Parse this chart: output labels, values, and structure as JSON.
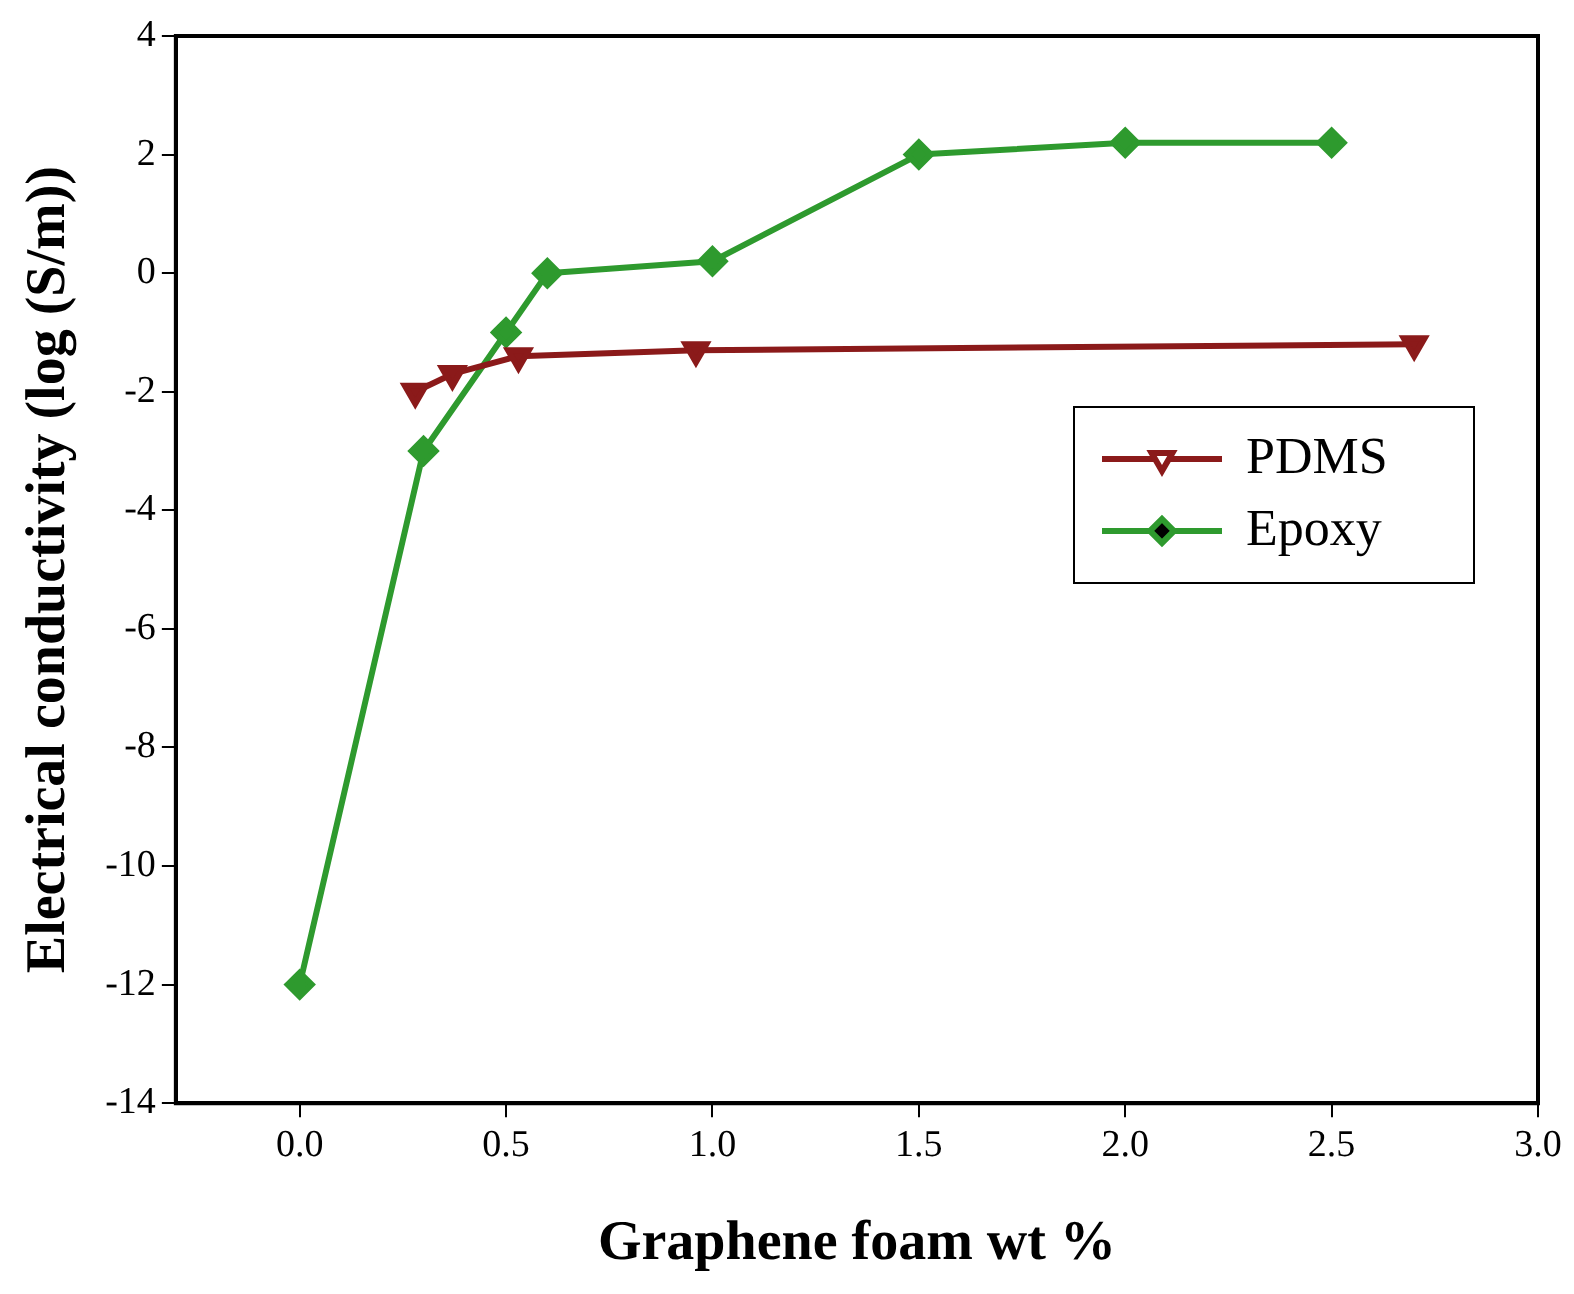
{
  "chart_data": {
    "type": "line",
    "xlabel": "Graphene foam wt %",
    "ylabel": "Electrical conductivity (log (S/m))",
    "xlim": [
      -0.3,
      3.0
    ],
    "xticks": [
      {
        "value": 0,
        "label": "0.0"
      },
      {
        "value": 0.5,
        "label": "0.5"
      },
      {
        "value": 1,
        "label": "1.0"
      },
      {
        "value": 1.5,
        "label": "1.5"
      },
      {
        "value": 2,
        "label": "2.0"
      },
      {
        "value": 2.5,
        "label": "2.5"
      },
      {
        "value": 3,
        "label": "3.0"
      }
    ],
    "ylim": [
      -14,
      4
    ],
    "yticks": [
      -14,
      -12,
      -10,
      -8,
      -6,
      -4,
      -2,
      0,
      2,
      4
    ],
    "grid": false,
    "legend": "right",
    "line_style": "solid",
    "series": [
      {
        "name": "PDMS",
        "color": "#8b1a1a",
        "marker": "triangle",
        "x": [
          0.28,
          0.37,
          0.53,
          0.96,
          2.7
        ],
        "values": [
          -2.0,
          -1.7,
          -1.4,
          -1.3,
          -1.2
        ]
      },
      {
        "name": "Epoxy",
        "color": "#2e9a2e",
        "marker": "diamond",
        "x": [
          0,
          0.3,
          0.5,
          0.6,
          1.0,
          1.5,
          2.0,
          2.5
        ],
        "values": [
          -12,
          -3,
          -1,
          0,
          0.2,
          2,
          2.2,
          2.2
        ]
      }
    ]
  }
}
